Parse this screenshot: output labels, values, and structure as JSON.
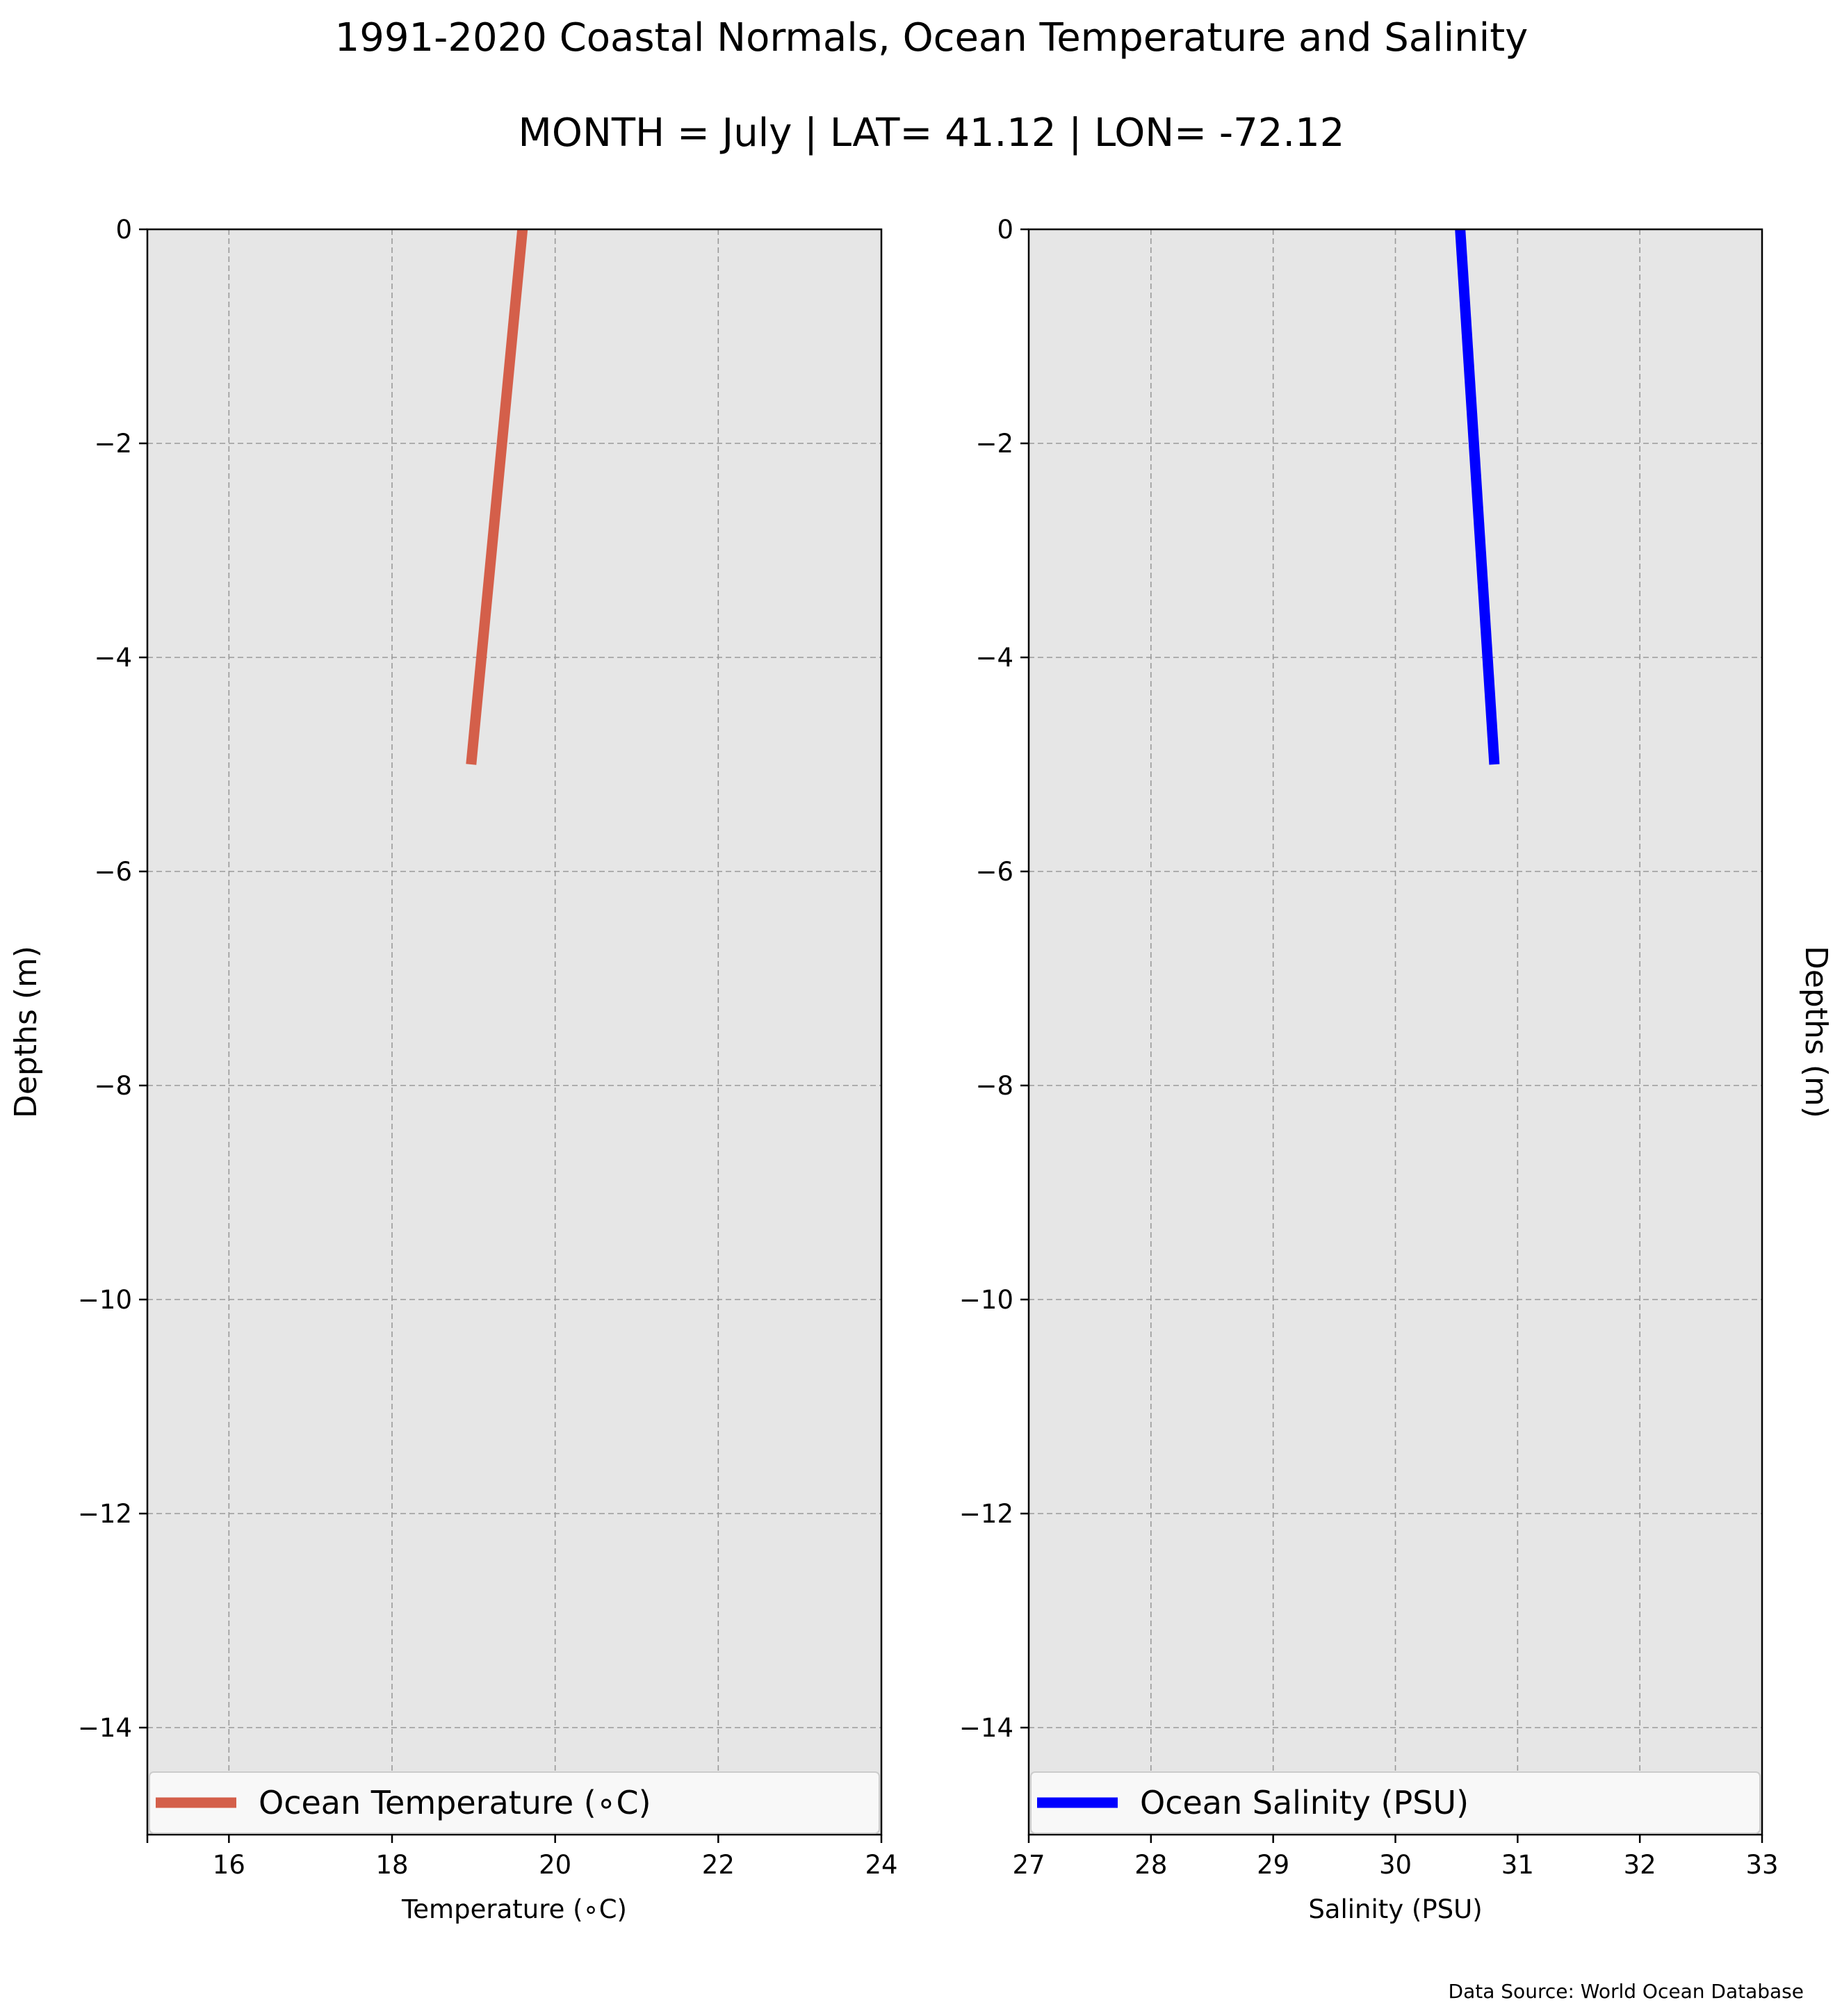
{
  "figure": {
    "title": "1991-2020 Coastal Normals, Ocean Temperature and Salinity",
    "subtitle": "MONTH = July | LAT= 41.12 | LON= -72.12",
    "source": "Data Source: World Ocean Database"
  },
  "chart_data": [
    {
      "type": "line",
      "xlabel": "Temperature ($^\\circ$C)",
      "xlabel_display": "Temperature (∘C)",
      "ylabel": "Depths (m)",
      "xlim": [
        15,
        24
      ],
      "ylim": [
        -15,
        0
      ],
      "xticks": [
        16,
        18,
        20,
        22,
        24
      ],
      "xtick_labels": [
        "16",
        "18",
        "20",
        "22",
        "24"
      ],
      "yticks": [
        0,
        -2,
        -4,
        -6,
        -8,
        -10,
        -12,
        -14
      ],
      "ytick_labels": [
        "0",
        "−2",
        "−4",
        "−6",
        "−8",
        "−10",
        "−12",
        "−14"
      ],
      "grid": true,
      "legend": "bottom",
      "series": [
        {
          "name": "Ocean Temperature (∘C)",
          "color": "#d45f4a",
          "x": [
            19.6,
            18.97
          ],
          "y": [
            0,
            -5
          ]
        }
      ]
    },
    {
      "type": "line",
      "xlabel": "Salinity (PSU)",
      "ylabel": "Depths (m)",
      "ylabel_side": "right",
      "xlim": [
        27,
        33
      ],
      "ylim": [
        -15,
        0
      ],
      "xticks": [
        27,
        28,
        29,
        30,
        31,
        32,
        33
      ],
      "xtick_labels": [
        "27",
        "28",
        "29",
        "30",
        "31",
        "32",
        "33"
      ],
      "yticks": [
        0,
        -2,
        -4,
        -6,
        -8,
        -10,
        -12,
        -14
      ],
      "ytick_labels": [
        "0",
        "−2",
        "−4",
        "−6",
        "−8",
        "−10",
        "−12",
        "−14"
      ],
      "grid": true,
      "legend": "bottom",
      "series": [
        {
          "name": "Ocean Salinity (PSU)",
          "color": "#0000ff",
          "x": [
            30.53,
            30.81
          ],
          "y": [
            0,
            -5
          ]
        }
      ]
    }
  ]
}
